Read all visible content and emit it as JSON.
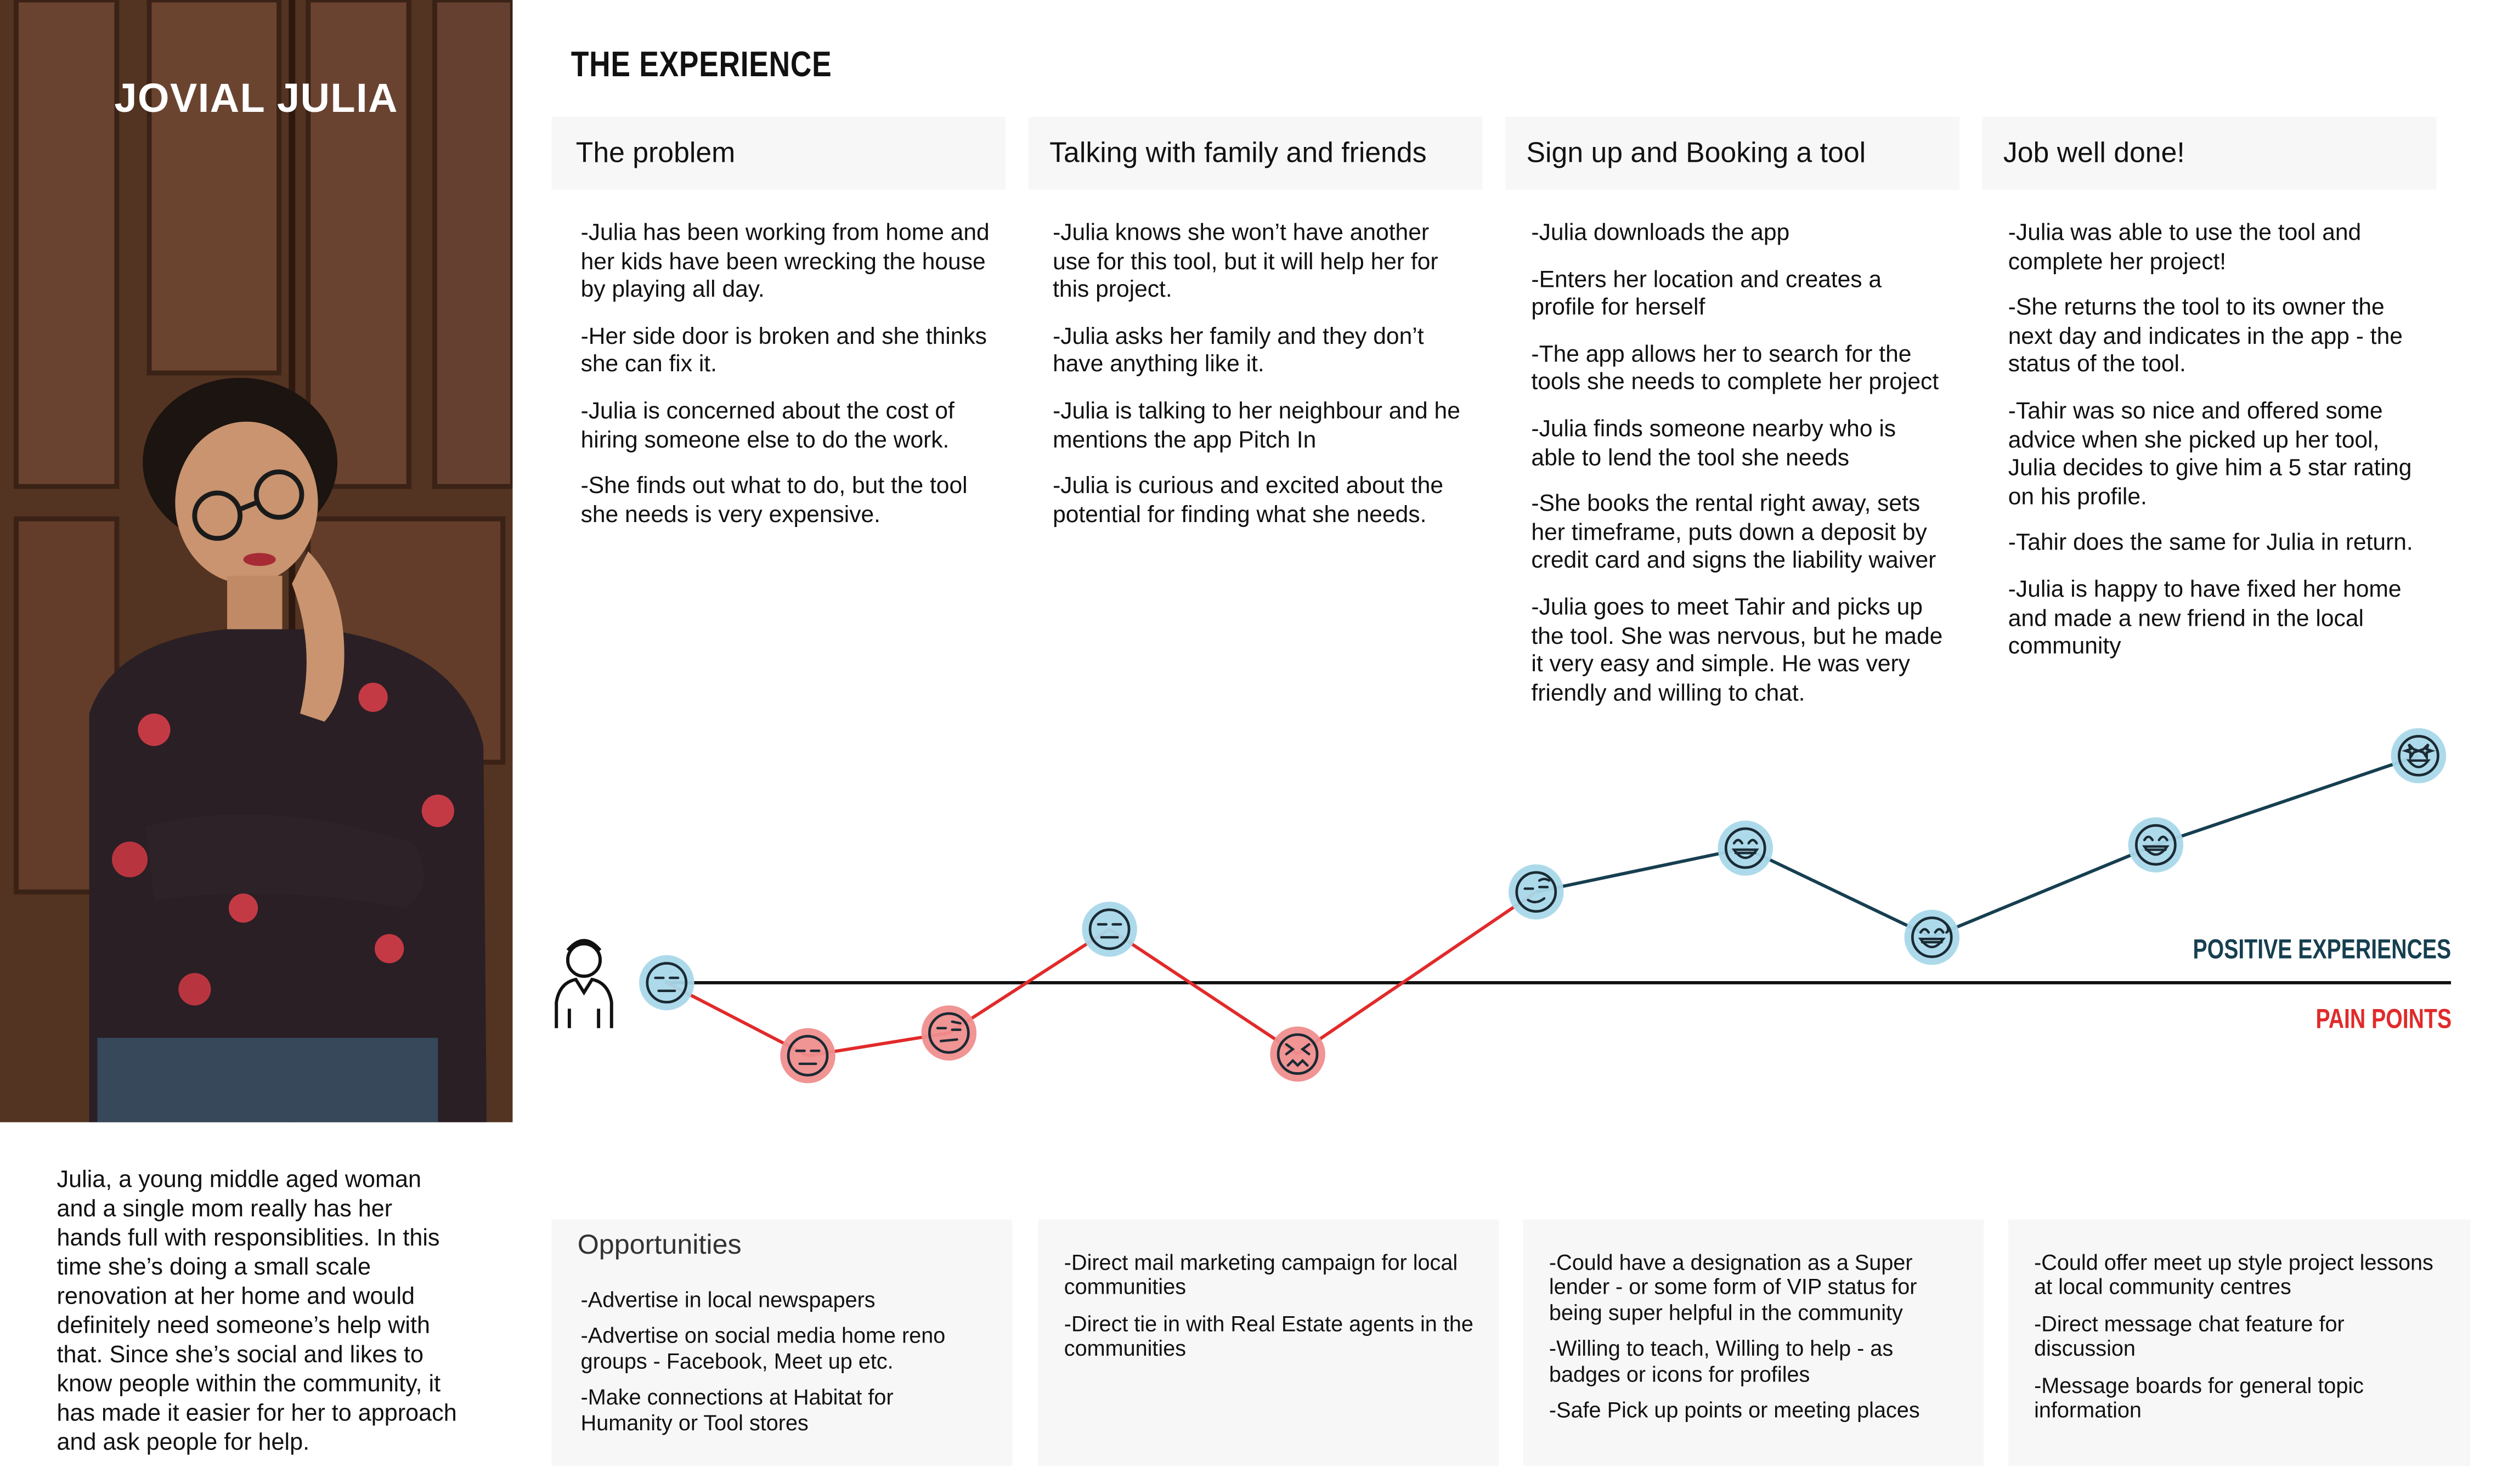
{
  "persona": {
    "name": "JOVIAL JULIA",
    "description": "Julia, a young middle aged woman and a single mom really has her hands full with responsiblities. In this time she’s doing a small scale renovation at her home and would definitely need someone’s help with that. Since she’s social and likes to know people within the community, it has made it easier for her to approach and ask people for help."
  },
  "experience_title": "THE EXPERIENCE",
  "stages": [
    {
      "title": "The problem",
      "points": [
        "-Julia has been working from home and her kids have been wrecking the house by playing all day.",
        "-Her side door is broken and she thinks she can fix it.",
        "-Julia is concerned about the cost of hiring someone else to do the work.",
        "-She finds out what to do, but the tool she needs is very expensive."
      ]
    },
    {
      "title": "Talking with family and friends",
      "points": [
        "-Julia knows she won’t have another use for this tool, but it will help her for this project.",
        "-Julia asks her family and they don’t have anything like it.",
        "-Julia is talking to her neighbour and he mentions the app Pitch In",
        "-Julia is curious and excited about the potential for finding what she needs."
      ]
    },
    {
      "title": "Sign up and Booking a tool",
      "points": [
        "-Julia downloads the app",
        "-Enters her location and creates a profile for herself",
        "-The app allows her to search for the tools she needs to complete her project",
        "-Julia finds someone nearby who is able to lend the tool she needs",
        "-She books the rental right away, sets her timeframe, puts down a deposit by credit card and signs the liability waiver",
        "-Julia goes to meet Tahir and picks up the tool. She was nervous, but he made it very easy and simple. He was very friendly and willing to chat."
      ]
    },
    {
      "title": "Job well done!",
      "points": [
        "-Julia was able to use the tool and complete her project!",
        "-She returns the tool to its owner the next day and indicates in the app - the status of the tool.",
        "-Tahir was so nice and offered some advice when she picked up her tool, Julia decides to give him a 5 star rating on his profile.",
        "-Tahir does the same for Julia in return.",
        "-Julia is happy to have fixed her home and made a new friend in the local community"
      ]
    }
  ],
  "legend": {
    "positive": "POSITIVE EXPERIENCES",
    "negative": "PAIN POINTS"
  },
  "journey": {
    "colors": {
      "positive_line": "#163f50",
      "negative_line": "#e12a2a",
      "positive_face": "#a9d8ea",
      "negative_face": "#ef8e8e"
    },
    "points": [
      {
        "mood": "neutral",
        "valence": "neutral",
        "icon": "neutral-face-icon"
      },
      {
        "mood": "unhappy",
        "valence": "negative",
        "icon": "expressionless-face-icon"
      },
      {
        "mood": "annoyed",
        "valence": "negative",
        "icon": "skeptical-face-icon"
      },
      {
        "mood": "neutral",
        "valence": "positive",
        "icon": "neutral-face-icon"
      },
      {
        "mood": "frustrated",
        "valence": "negative",
        "icon": "tired-face-icon"
      },
      {
        "mood": "hopeful",
        "valence": "positive",
        "icon": "raised-brow-face-icon"
      },
      {
        "mood": "happy",
        "valence": "positive",
        "icon": "grinning-face-icon"
      },
      {
        "mood": "relieved",
        "valence": "positive",
        "icon": "sweat-smile-face-icon"
      },
      {
        "mood": "happy",
        "valence": "positive",
        "icon": "grinning-face-icon"
      },
      {
        "mood": "delighted",
        "valence": "positive",
        "icon": "star-struck-face-icon"
      }
    ]
  },
  "opportunities": {
    "title": "Opportunities",
    "columns": [
      [
        "-Advertise in local newspapers",
        "-Advertise on social media home reno groups - Facebook, Meet up etc.",
        "-Make connections at Habitat for Humanity or Tool stores"
      ],
      [
        "-Direct mail marketing campaign for local communities",
        "-Direct tie in with Real Estate agents in the communities"
      ],
      [
        "-Could have a designation as a Super lender - or some form of VIP status for being super helpful in the community",
        "-Willing to teach, Willing to help - as badges or icons for profiles",
        "-Safe Pick up points or meeting places"
      ],
      [
        "-Could offer meet up style project lessons at local community centres",
        "-Direct message chat feature for discussion",
        "-Message boards for general topic information"
      ]
    ]
  }
}
